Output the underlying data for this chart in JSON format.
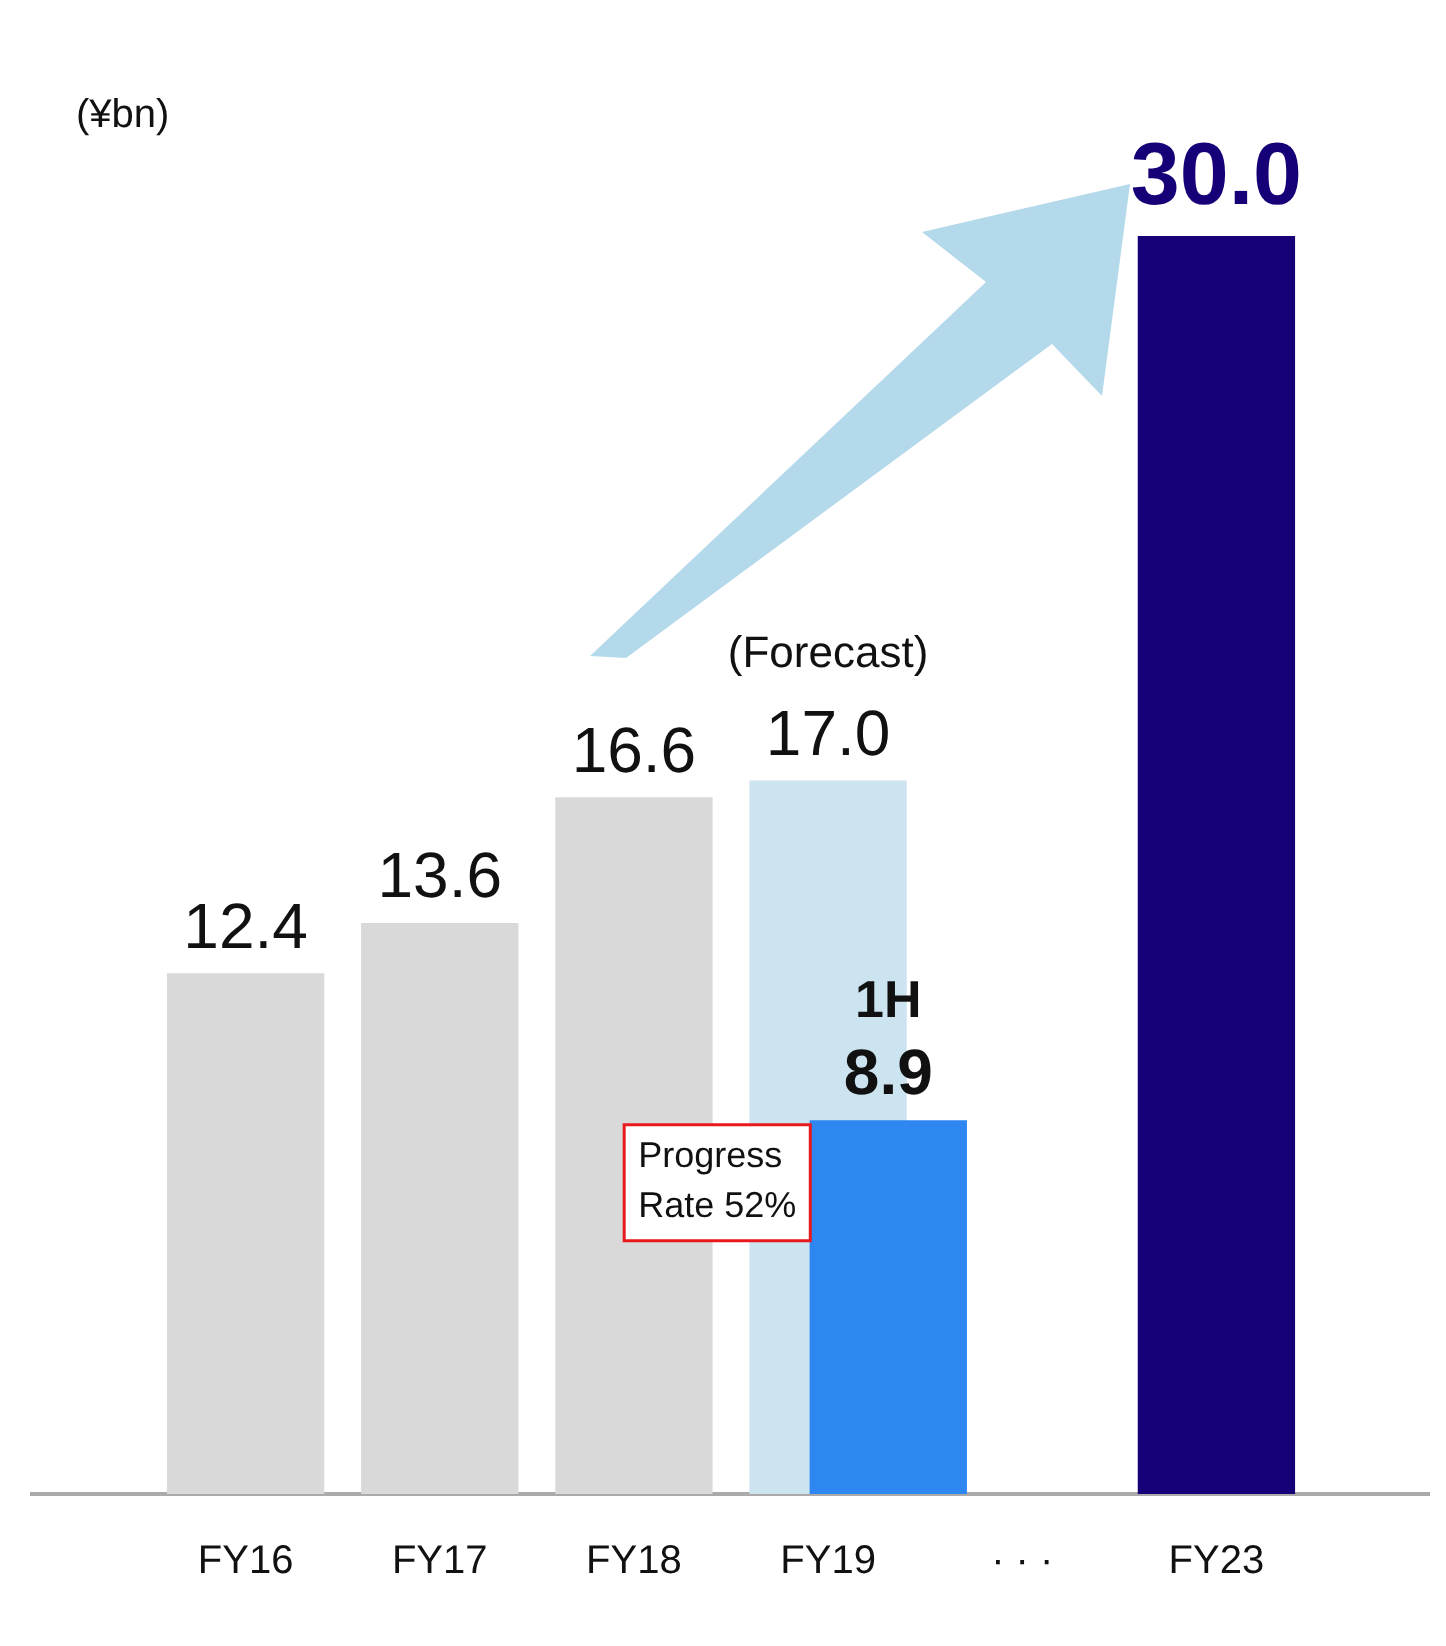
{
  "chart_data": {
    "type": "bar",
    "ylabel": "(¥bn)",
    "categories": [
      "FY16",
      "FY17",
      "FY18",
      "FY19",
      "· · ·",
      "FY23"
    ],
    "series": [
      {
        "colors": [
          "#d9d9d9",
          "#d9d9d9",
          "#d9d9d9",
          "#cce4f0",
          null,
          "#170077"
        ],
        "values": [
          12.4,
          13.6,
          16.6,
          17.0,
          null,
          30.0
        ],
        "value_labels": [
          "12.4",
          "13.6",
          "16.6",
          "17.0",
          null,
          "30.0"
        ]
      },
      {
        "name": "1H",
        "color": "#2e86f0",
        "values": [
          null,
          null,
          null,
          8.9,
          null,
          null
        ],
        "value_labels": [
          null,
          null,
          null,
          "8.9",
          null,
          null
        ]
      }
    ],
    "annotations": [
      {
        "text": "(Forecast)",
        "x": "FY19",
        "y": 17.0
      },
      "Progress Rate 52%"
    ],
    "grid": false,
    "legend": false
  }
}
